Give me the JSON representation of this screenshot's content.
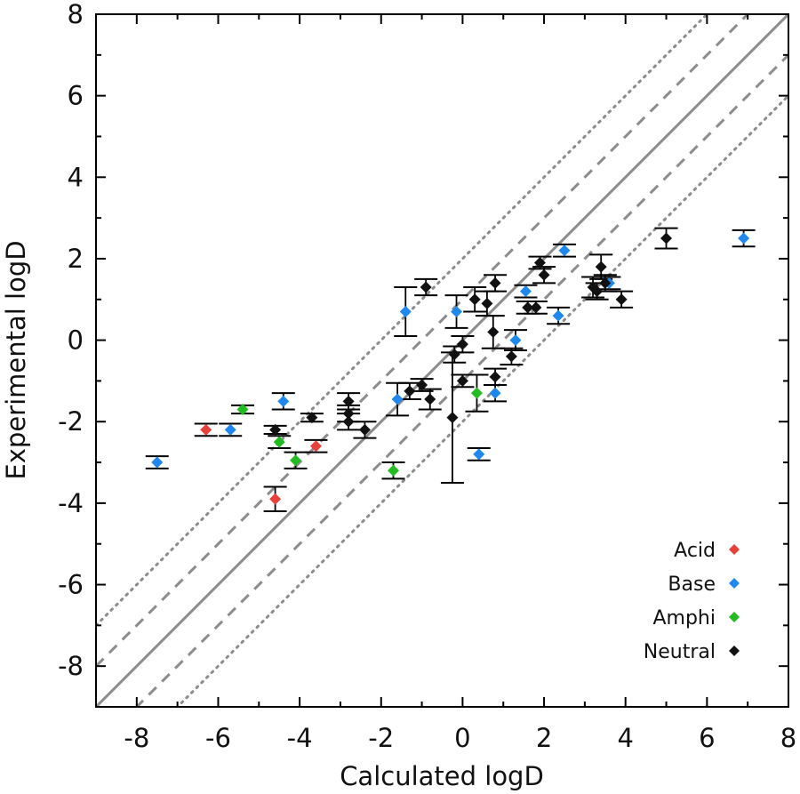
{
  "chart_data": {
    "type": "scatter",
    "title": "",
    "xlabel": "Calculated logD",
    "ylabel": "Experimental logD",
    "xlim": [
      -9,
      8
    ],
    "ylim": [
      -9,
      8
    ],
    "x_ticks": [
      "-8",
      "-6",
      "-4",
      "-2",
      "0",
      "2",
      "4",
      "6",
      "8"
    ],
    "y_ticks": [
      "8",
      "6",
      "4",
      "2",
      "0",
      "-2",
      "-4",
      "-6",
      "-8"
    ],
    "grid": false,
    "legend_position": "bottom-right",
    "reference_lines": [
      {
        "style": "solid",
        "offset": 0
      },
      {
        "style": "dashed",
        "offset": 1
      },
      {
        "style": "dashed",
        "offset": -1
      },
      {
        "style": "dotted",
        "offset": 2
      },
      {
        "style": "dotted",
        "offset": -2
      }
    ],
    "series": [
      {
        "name": "Acid",
        "color": "#e8413c",
        "points": [
          {
            "x": -6.3,
            "y": -2.2,
            "err": 0.15
          },
          {
            "x": -3.6,
            "y": -2.6,
            "err": 0.15
          },
          {
            "x": -4.6,
            "y": -3.9,
            "err": 0.3
          }
        ]
      },
      {
        "name": "Base",
        "color": "#1e88ee",
        "points": [
          {
            "x": -7.5,
            "y": -3.0,
            "err": 0.15
          },
          {
            "x": -5.7,
            "y": -2.2,
            "err": 0.15
          },
          {
            "x": -4.4,
            "y": -1.5,
            "err": 0.2
          },
          {
            "x": -1.6,
            "y": -1.45,
            "err": 0.4
          },
          {
            "x": -1.4,
            "y": 0.7,
            "err": 0.6
          },
          {
            "x": -0.15,
            "y": 0.7,
            "err": 0.4
          },
          {
            "x": 0.4,
            "y": -2.8,
            "err": 0.15
          },
          {
            "x": 0.8,
            "y": -1.3,
            "err": 0.2
          },
          {
            "x": 1.3,
            "y": 0.0,
            "err": 0.25
          },
          {
            "x": 1.55,
            "y": 1.2,
            "err": 0.15
          },
          {
            "x": 2.35,
            "y": 0.6,
            "err": 0.2
          },
          {
            "x": 2.5,
            "y": 2.2,
            "err": 0.15
          },
          {
            "x": 3.6,
            "y": 1.4,
            "err": 0.15
          },
          {
            "x": 6.9,
            "y": 2.5,
            "err": 0.2
          }
        ]
      },
      {
        "name": "Amphi",
        "color": "#22bb22",
        "points": [
          {
            "x": -5.4,
            "y": -1.7,
            "err": 0.1
          },
          {
            "x": -4.5,
            "y": -2.5,
            "err": 0.15
          },
          {
            "x": -4.1,
            "y": -2.95,
            "err": 0.2
          },
          {
            "x": -1.7,
            "y": -3.2,
            "err": 0.2
          },
          {
            "x": 0.35,
            "y": -1.3,
            "err": 0.45
          }
        ]
      },
      {
        "name": "Neutral",
        "color": "#111111",
        "points": [
          {
            "x": -4.6,
            "y": -2.2,
            "err": 0.1
          },
          {
            "x": -3.7,
            "y": -1.9,
            "err": 0.1
          },
          {
            "x": -2.8,
            "y": -1.5,
            "err": 0.2
          },
          {
            "x": -2.8,
            "y": -1.8,
            "err": 0.2
          },
          {
            "x": -2.8,
            "y": -2.0,
            "err": 0.2
          },
          {
            "x": -2.4,
            "y": -2.2,
            "err": 0.2
          },
          {
            "x": -1.3,
            "y": -1.25,
            "err": 0.2
          },
          {
            "x": -1.0,
            "y": -1.1,
            "err": 0.15
          },
          {
            "x": -0.8,
            "y": -1.45,
            "err": 0.25
          },
          {
            "x": -0.9,
            "y": 1.3,
            "err": 0.2
          },
          {
            "x": -0.25,
            "y": -1.9,
            "err": 1.6
          },
          {
            "x": -0.2,
            "y": -0.35,
            "err": 0.2
          },
          {
            "x": 0.0,
            "y": -0.1,
            "err": 0.2
          },
          {
            "x": 0.0,
            "y": -1.0,
            "err": 0.15
          },
          {
            "x": 0.3,
            "y": 1.0,
            "err": 0.3
          },
          {
            "x": 0.6,
            "y": 0.9,
            "err": 0.3
          },
          {
            "x": 0.75,
            "y": 0.2,
            "err": 0.4
          },
          {
            "x": 0.8,
            "y": 1.4,
            "err": 0.2
          },
          {
            "x": 0.8,
            "y": -0.9,
            "err": 0.2
          },
          {
            "x": 1.2,
            "y": -0.4,
            "err": 0.2
          },
          {
            "x": 1.6,
            "y": 0.8,
            "err": 0.15
          },
          {
            "x": 1.8,
            "y": 0.8,
            "err": 0.15
          },
          {
            "x": 1.9,
            "y": 1.9,
            "err": 0.15
          },
          {
            "x": 2.0,
            "y": 1.6,
            "err": 0.2
          },
          {
            "x": 3.2,
            "y": 1.3,
            "err": 0.25
          },
          {
            "x": 3.4,
            "y": 1.8,
            "err": 0.3
          },
          {
            "x": 3.3,
            "y": 1.2,
            "err": 0.2
          },
          {
            "x": 3.5,
            "y": 1.4,
            "err": 0.2
          },
          {
            "x": 3.9,
            "y": 1.0,
            "err": 0.2
          },
          {
            "x": 5.0,
            "y": 2.5,
            "err": 0.25
          }
        ]
      }
    ]
  }
}
